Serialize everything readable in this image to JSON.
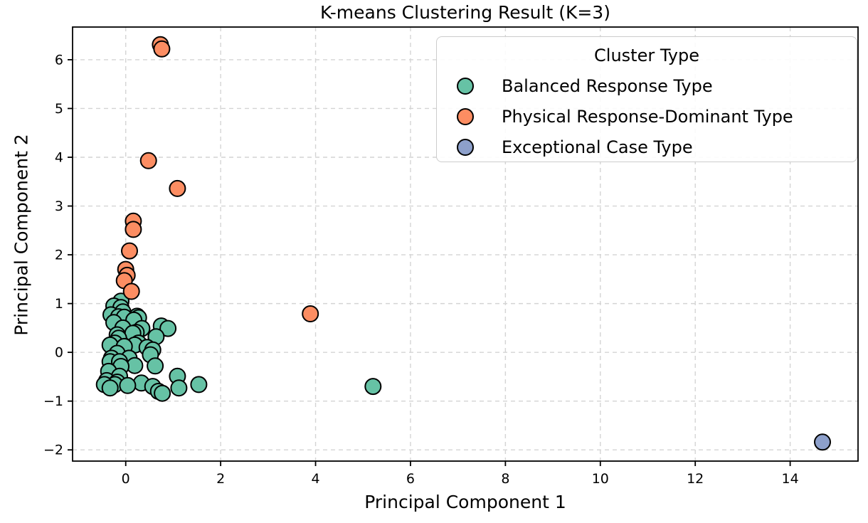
{
  "chart_data": {
    "type": "scatter",
    "title": "K-means Clustering Result (K=3)",
    "xlabel": "Principal Component 1",
    "ylabel": "Principal Component 2",
    "xlim": [
      -1.12,
      15.43
    ],
    "ylim": [
      -2.23,
      6.67
    ],
    "x_ticks": [
      0,
      2,
      4,
      6,
      8,
      10,
      12,
      14
    ],
    "x_tick_labels": [
      "0",
      "2",
      "4",
      "6",
      "8",
      "10",
      "12",
      "14"
    ],
    "y_ticks": [
      -2,
      -1,
      0,
      1,
      2,
      3,
      4,
      5,
      6
    ],
    "y_tick_labels": [
      "−2",
      "−1",
      "0",
      "1",
      "2",
      "3",
      "4",
      "5",
      "6"
    ],
    "grid": true,
    "grid_color": "#d4d4d4",
    "marker_edge_color": "#000000",
    "legend": {
      "title": "Cluster Type",
      "position": "upper right"
    },
    "series": [
      {
        "name": "Balanced Response Type",
        "color": "#66c2a5",
        "points": [
          [
            -0.1,
            1.05
          ],
          [
            -0.25,
            0.95
          ],
          [
            -0.1,
            0.92
          ],
          [
            -0.06,
            0.83
          ],
          [
            -0.31,
            0.77
          ],
          [
            0.24,
            0.74
          ],
          [
            -0.15,
            0.73
          ],
          [
            -0.03,
            0.72
          ],
          [
            0.27,
            0.71
          ],
          [
            0.17,
            0.66
          ],
          [
            -0.25,
            0.61
          ],
          [
            0.75,
            0.54
          ],
          [
            -0.06,
            0.5
          ],
          [
            0.89,
            0.49
          ],
          [
            0.34,
            0.49
          ],
          [
            0.22,
            0.41
          ],
          [
            0.15,
            0.39
          ],
          [
            -0.18,
            0.36
          ],
          [
            0.64,
            0.32
          ],
          [
            -0.15,
            0.29
          ],
          [
            -0.23,
            0.19
          ],
          [
            0.27,
            0.19
          ],
          [
            -0.33,
            0.15
          ],
          [
            0.19,
            0.15
          ],
          [
            -0.03,
            0.12
          ],
          [
            0.45,
            0.1
          ],
          [
            0.57,
            0.05
          ],
          [
            -0.18,
            -0.02
          ],
          [
            0.52,
            -0.05
          ],
          [
            0.07,
            -0.12
          ],
          [
            -0.3,
            -0.12
          ],
          [
            -0.33,
            -0.19
          ],
          [
            -0.13,
            -0.19
          ],
          [
            0.19,
            -0.27
          ],
          [
            0.62,
            -0.28
          ],
          [
            -0.1,
            -0.29
          ],
          [
            -0.36,
            -0.39
          ],
          [
            -0.13,
            -0.49
          ],
          [
            1.09,
            -0.49
          ],
          [
            -0.4,
            -0.58
          ],
          [
            -0.18,
            -0.61
          ],
          [
            0.33,
            -0.63
          ],
          [
            -0.23,
            -0.66
          ],
          [
            1.54,
            -0.66
          ],
          [
            -0.45,
            -0.66
          ],
          [
            0.04,
            -0.68
          ],
          [
            0.57,
            -0.7
          ],
          [
            -0.33,
            -0.73
          ],
          [
            1.12,
            -0.73
          ],
          [
            0.69,
            -0.8
          ],
          [
            0.77,
            -0.84
          ],
          [
            5.21,
            -0.7
          ]
        ]
      },
      {
        "name": "Physical Response-Dominant Type",
        "color": "#fc8d62",
        "points": [
          [
            0.73,
            6.31
          ],
          [
            0.76,
            6.22
          ],
          [
            0.48,
            3.93
          ],
          [
            1.09,
            3.36
          ],
          [
            0.16,
            2.69
          ],
          [
            0.16,
            2.52
          ],
          [
            0.08,
            2.08
          ],
          [
            0.0,
            1.7
          ],
          [
            0.03,
            1.58
          ],
          [
            -0.03,
            1.47
          ],
          [
            0.12,
            1.25
          ],
          [
            3.89,
            0.79
          ]
        ]
      },
      {
        "name": "Exceptional Case Type",
        "color": "#8da0cb",
        "points": [
          [
            14.68,
            -1.84
          ]
        ]
      }
    ]
  }
}
